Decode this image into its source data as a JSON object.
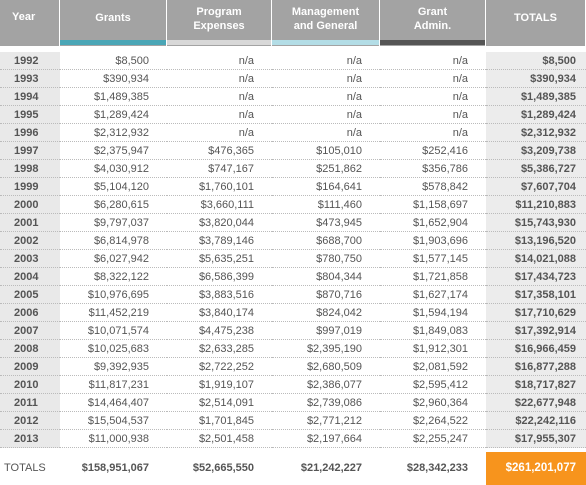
{
  "header": {
    "columns": [
      [
        "Year"
      ],
      [
        "Grants"
      ],
      [
        "Program",
        "Expenses"
      ],
      [
        "Management",
        "and General"
      ],
      [
        "Grant",
        "Admin."
      ],
      [
        "TOTALS"
      ]
    ]
  },
  "table": {
    "rows": [
      [
        "1992",
        "$8,500",
        "n/a",
        "n/a",
        "n/a",
        "$8,500"
      ],
      [
        "1993",
        "$390,934",
        "n/a",
        "n/a",
        "n/a",
        "$390,934"
      ],
      [
        "1994",
        "$1,489,385",
        "n/a",
        "n/a",
        "n/a",
        "$1,489,385"
      ],
      [
        "1995",
        "$1,289,424",
        "n/a",
        "n/a",
        "n/a",
        "$1,289,424"
      ],
      [
        "1996",
        "$2,312,932",
        "n/a",
        "n/a",
        "n/a",
        "$2,312,932"
      ],
      [
        "1997",
        "$2,375,947",
        "$476,365",
        "$105,010",
        "$252,416",
        "$3,209,738"
      ],
      [
        "1998",
        "$4,030,912",
        "$747,167",
        "$251,862",
        "$356,786",
        "$5,386,727"
      ],
      [
        "1999",
        "$5,104,120",
        "$1,760,101",
        "$164,641",
        "$578,842",
        "$7,607,704"
      ],
      [
        "2000",
        "$6,280,615",
        "$3,660,111",
        "$111,460",
        "$1,158,697",
        "$11,210,883"
      ],
      [
        "2001",
        "$9,797,037",
        "$3,820,044",
        "$473,945",
        "$1,652,904",
        "$15,743,930"
      ],
      [
        "2002",
        "$6,814,978",
        "$3,789,146",
        "$688,700",
        "$1,903,696",
        "$13,196,520"
      ],
      [
        "2003",
        "$6,027,942",
        "$5,635,251",
        "$780,750",
        "$1,577,145",
        "$14,021,088"
      ],
      [
        "2004",
        "$8,322,122",
        "$6,586,399",
        "$804,344",
        "$1,721,858",
        "$17,434,723"
      ],
      [
        "2005",
        "$10,976,695",
        "$3,883,516",
        "$870,716",
        "$1,627,174",
        "$17,358,101"
      ],
      [
        "2006",
        "$11,452,219",
        "$3,840,174",
        "$824,042",
        "$1,594,194",
        "$17,710,629"
      ],
      [
        "2007",
        "$10,071,574",
        "$4,475,238",
        "$997,019",
        "$1,849,083",
        "$17,392,914"
      ],
      [
        "2008",
        "$10,025,683",
        "$2,633,285",
        "$2,395,190",
        "$1,912,301",
        "$16,966,459"
      ],
      [
        "2009",
        "$9,392,935",
        "$2,722,252",
        "$2,680,509",
        "$2,081,592",
        "$16,877,288"
      ],
      [
        "2010",
        "$11,817,231",
        "$1,919,107",
        "$2,386,077",
        "$2,595,412",
        "$18,717,827"
      ],
      [
        "2011",
        "$14,464,407",
        "$2,514,091",
        "$2,739,086",
        "$2,960,364",
        "$22,677,948"
      ],
      [
        "2012",
        "$15,504,537",
        "$1,701,845",
        "$2,771,212",
        "$2,264,522",
        "$22,242,116"
      ],
      [
        "2013",
        "$11,000,938",
        "$2,501,458",
        "$2,197,664",
        "$2,255,247",
        "$17,955,307"
      ]
    ]
  },
  "footer": {
    "cells": [
      "TOTALS",
      "$158,951,067",
      "$52,665,550",
      "$21,242,227",
      "$28,342,233",
      "$261,201,077"
    ]
  }
}
